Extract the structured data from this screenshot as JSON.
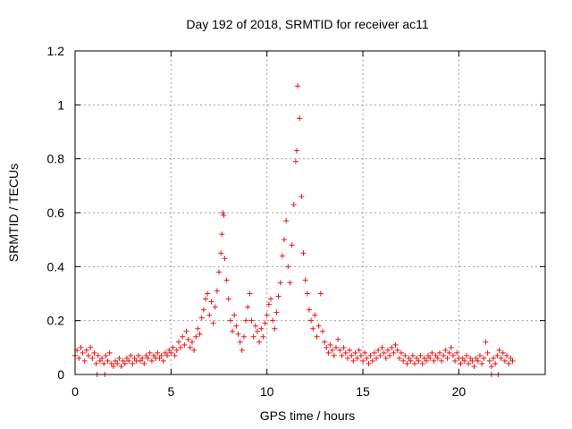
{
  "chart_data": {
    "type": "scatter",
    "title": "Day 192 of 2018, SRMTID for receiver ac11",
    "xlabel": "GPS time / hours",
    "ylabel": "SRMTID / TECUs",
    "xlim": [
      0,
      24.5
    ],
    "ylim": [
      0,
      1.2
    ],
    "x_ticks": [
      0,
      5,
      10,
      15,
      20
    ],
    "x_tick_labels": [
      "0",
      "5",
      "10",
      "15",
      "20"
    ],
    "y_ticks": [
      0,
      0.2,
      0.4,
      0.6,
      0.8,
      1,
      1.2
    ],
    "y_tick_labels": [
      "0",
      "0.2",
      "0.4",
      "0.6",
      "0.8",
      "1",
      "1.2"
    ],
    "grid": true,
    "marker": "+",
    "color": "#e41a1c",
    "series": [
      {
        "name": "SRMTID",
        "points": [
          [
            0.0,
            0.07
          ],
          [
            0.1,
            0.09
          ],
          [
            0.2,
            0.06
          ],
          [
            0.3,
            0.1
          ],
          [
            0.4,
            0.08
          ],
          [
            0.5,
            0.05
          ],
          [
            0.6,
            0.09
          ],
          [
            0.7,
            0.07
          ],
          [
            0.8,
            0.1
          ],
          [
            0.9,
            0.06
          ],
          [
            1.0,
            0.08
          ],
          [
            1.1,
            0.04
          ],
          [
            1.2,
            0.07
          ],
          [
            1.3,
            0.05
          ],
          [
            1.4,
            0.06
          ],
          [
            1.5,
            0.04
          ],
          [
            1.6,
            0.07
          ],
          [
            1.7,
            0.05
          ],
          [
            1.8,
            0.08
          ],
          [
            1.9,
            0.04
          ],
          [
            2.0,
            0.03
          ],
          [
            2.1,
            0.05
          ],
          [
            2.2,
            0.04
          ],
          [
            2.3,
            0.06
          ],
          [
            2.4,
            0.03
          ],
          [
            2.5,
            0.05
          ],
          [
            2.6,
            0.04
          ],
          [
            2.7,
            0.06
          ],
          [
            2.8,
            0.05
          ],
          [
            2.9,
            0.07
          ],
          [
            3.0,
            0.04
          ],
          [
            3.1,
            0.06
          ],
          [
            3.2,
            0.05
          ],
          [
            3.3,
            0.07
          ],
          [
            3.4,
            0.05
          ],
          [
            3.5,
            0.06
          ],
          [
            3.6,
            0.04
          ],
          [
            3.7,
            0.07
          ],
          [
            3.8,
            0.06
          ],
          [
            3.9,
            0.08
          ],
          [
            4.0,
            0.05
          ],
          [
            4.1,
            0.07
          ],
          [
            4.2,
            0.06
          ],
          [
            4.3,
            0.08
          ],
          [
            4.4,
            0.06
          ],
          [
            4.5,
            0.07
          ],
          [
            4.6,
            0.05
          ],
          [
            4.7,
            0.08
          ],
          [
            4.8,
            0.07
          ],
          [
            4.9,
            0.09
          ],
          [
            5.0,
            0.08
          ],
          [
            5.1,
            0.1
          ],
          [
            5.2,
            0.07
          ],
          [
            5.3,
            0.09
          ],
          [
            5.4,
            0.12
          ],
          [
            5.5,
            0.1
          ],
          [
            5.6,
            0.14
          ],
          [
            5.7,
            0.11
          ],
          [
            5.8,
            0.16
          ],
          [
            5.9,
            0.13
          ],
          [
            6.0,
            0.1
          ],
          [
            6.1,
            0.12
          ],
          [
            6.2,
            0.09
          ],
          [
            6.3,
            0.14
          ],
          [
            6.4,
            0.17
          ],
          [
            6.5,
            0.15
          ],
          [
            6.6,
            0.21
          ],
          [
            6.7,
            0.24
          ],
          [
            6.8,
            0.28
          ],
          [
            6.9,
            0.3
          ],
          [
            7.0,
            0.22
          ],
          [
            7.1,
            0.27
          ],
          [
            7.2,
            0.19
          ],
          [
            7.3,
            0.25
          ],
          [
            7.4,
            0.31
          ],
          [
            7.5,
            0.38
          ],
          [
            7.6,
            0.45
          ],
          [
            7.65,
            0.52
          ],
          [
            7.7,
            0.6
          ],
          [
            7.75,
            0.59
          ],
          [
            7.8,
            0.43
          ],
          [
            7.9,
            0.35
          ],
          [
            8.0,
            0.28
          ],
          [
            8.1,
            0.2
          ],
          [
            8.2,
            0.16
          ],
          [
            8.3,
            0.22
          ],
          [
            8.4,
            0.18
          ],
          [
            8.5,
            0.15
          ],
          [
            8.6,
            0.12
          ],
          [
            8.7,
            0.09
          ],
          [
            8.8,
            0.14
          ],
          [
            8.9,
            0.2
          ],
          [
            9.0,
            0.25
          ],
          [
            9.1,
            0.3
          ],
          [
            9.2,
            0.2
          ],
          [
            9.3,
            0.14
          ],
          [
            9.4,
            0.18
          ],
          [
            9.5,
            0.16
          ],
          [
            9.6,
            0.12
          ],
          [
            9.7,
            0.17
          ],
          [
            9.8,
            0.14
          ],
          [
            9.9,
            0.19
          ],
          [
            10.0,
            0.22
          ],
          [
            10.1,
            0.26
          ],
          [
            10.2,
            0.28
          ],
          [
            10.3,
            0.2
          ],
          [
            10.4,
            0.17
          ],
          [
            10.5,
            0.23
          ],
          [
            10.6,
            0.29
          ],
          [
            10.7,
            0.34
          ],
          [
            10.8,
            0.44
          ],
          [
            10.9,
            0.5
          ],
          [
            11.0,
            0.57
          ],
          [
            11.1,
            0.4
          ],
          [
            11.2,
            0.34
          ],
          [
            11.3,
            0.48
          ],
          [
            11.4,
            0.63
          ],
          [
            11.5,
            0.79
          ],
          [
            11.55,
            0.83
          ],
          [
            11.6,
            1.07
          ],
          [
            11.7,
            0.95
          ],
          [
            11.8,
            0.66
          ],
          [
            11.9,
            0.45
          ],
          [
            12.0,
            0.35
          ],
          [
            12.1,
            0.3
          ],
          [
            12.2,
            0.24
          ],
          [
            12.3,
            0.2
          ],
          [
            12.4,
            0.17
          ],
          [
            12.5,
            0.22
          ],
          [
            12.6,
            0.14
          ],
          [
            12.7,
            0.18
          ],
          [
            12.8,
            0.3
          ],
          [
            12.9,
            0.16
          ],
          [
            13.0,
            0.12
          ],
          [
            13.1,
            0.1
          ],
          [
            13.2,
            0.08
          ],
          [
            13.3,
            0.11
          ],
          [
            13.4,
            0.09
          ],
          [
            13.5,
            0.07
          ],
          [
            13.6,
            0.1
          ],
          [
            13.7,
            0.13
          ],
          [
            13.8,
            0.09
          ],
          [
            13.9,
            0.07
          ],
          [
            14.0,
            0.1
          ],
          [
            14.1,
            0.08
          ],
          [
            14.2,
            0.06
          ],
          [
            14.3,
            0.09
          ],
          [
            14.4,
            0.07
          ],
          [
            14.5,
            0.05
          ],
          [
            14.6,
            0.08
          ],
          [
            14.7,
            0.06
          ],
          [
            14.8,
            0.09
          ],
          [
            14.9,
            0.07
          ],
          [
            15.0,
            0.05
          ],
          [
            15.1,
            0.08
          ],
          [
            15.2,
            0.06
          ],
          [
            15.3,
            0.04
          ],
          [
            15.4,
            0.07
          ],
          [
            15.5,
            0.05
          ],
          [
            15.6,
            0.08
          ],
          [
            15.7,
            0.06
          ],
          [
            15.8,
            0.09
          ],
          [
            15.9,
            0.07
          ],
          [
            16.0,
            0.1
          ],
          [
            16.1,
            0.08
          ],
          [
            16.2,
            0.06
          ],
          [
            16.3,
            0.09
          ],
          [
            16.4,
            0.07
          ],
          [
            16.5,
            0.1
          ],
          [
            16.6,
            0.08
          ],
          [
            16.7,
            0.11
          ],
          [
            16.8,
            0.09
          ],
          [
            16.9,
            0.06
          ],
          [
            17.0,
            0.08
          ],
          [
            17.1,
            0.05
          ],
          [
            17.2,
            0.07
          ],
          [
            17.3,
            0.04
          ],
          [
            17.4,
            0.06
          ],
          [
            17.5,
            0.05
          ],
          [
            17.6,
            0.07
          ],
          [
            17.7,
            0.04
          ],
          [
            17.8,
            0.06
          ],
          [
            17.9,
            0.05
          ],
          [
            18.0,
            0.07
          ],
          [
            18.1,
            0.04
          ],
          [
            18.2,
            0.06
          ],
          [
            18.3,
            0.05
          ],
          [
            18.4,
            0.07
          ],
          [
            18.5,
            0.06
          ],
          [
            18.6,
            0.08
          ],
          [
            18.7,
            0.05
          ],
          [
            18.8,
            0.07
          ],
          [
            18.9,
            0.06
          ],
          [
            19.0,
            0.08
          ],
          [
            19.1,
            0.05
          ],
          [
            19.2,
            0.07
          ],
          [
            19.3,
            0.09
          ],
          [
            19.4,
            0.06
          ],
          [
            19.5,
            0.08
          ],
          [
            19.6,
            0.1
          ],
          [
            19.7,
            0.07
          ],
          [
            19.8,
            0.05
          ],
          [
            19.9,
            0.08
          ],
          [
            20.0,
            0.06
          ],
          [
            20.1,
            0.04
          ],
          [
            20.2,
            0.06
          ],
          [
            20.3,
            0.05
          ],
          [
            20.4,
            0.07
          ],
          [
            20.5,
            0.04
          ],
          [
            20.6,
            0.06
          ],
          [
            20.7,
            0.05
          ],
          [
            20.8,
            0.03
          ],
          [
            20.9,
            0.06
          ],
          [
            21.0,
            0.05
          ],
          [
            21.1,
            0.07
          ],
          [
            21.2,
            0.04
          ],
          [
            21.3,
            0.06
          ],
          [
            21.4,
            0.12
          ],
          [
            21.5,
            0.08
          ],
          [
            21.6,
            0.05
          ],
          [
            21.7,
            0.03
          ],
          [
            21.8,
            0.06
          ],
          [
            21.9,
            0.04
          ],
          [
            22.0,
            0.07
          ],
          [
            22.1,
            0.09
          ],
          [
            22.2,
            0.06
          ],
          [
            22.3,
            0.08
          ],
          [
            22.4,
            0.05
          ],
          [
            22.5,
            0.07
          ],
          [
            22.6,
            0.04
          ],
          [
            22.7,
            0.06
          ],
          [
            22.8,
            0.05
          ],
          [
            1.15,
            0.0
          ],
          [
            1.55,
            0.0
          ],
          [
            21.7,
            0.0
          ],
          [
            22.05,
            0.0
          ]
        ]
      }
    ]
  }
}
